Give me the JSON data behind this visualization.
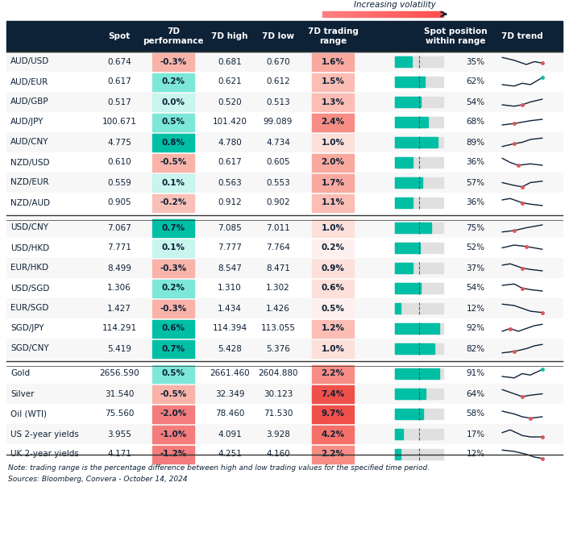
{
  "header_bg": "#0d2137",
  "header_fg": "#ffffff",
  "bg_color": "#ffffff",
  "col_labels": [
    "",
    "Spot",
    "7D\nperformance",
    "7D high",
    "7D low",
    "7D trading\nrange",
    "Spot position\nwithin range",
    "7D trend"
  ],
  "note": "Note: trading range is the percentage difference between high and low trading values for the specified time period.",
  "source": "Sources: Bloomberg, Convera - October 14, 2024",
  "volatility_label": "Increasing volatility",
  "sections": [
    {
      "rows": [
        [
          "AUD/USD",
          "0.674",
          "-0.3%",
          "0.681",
          "0.670",
          "1.6%",
          35,
          -0.3
        ],
        [
          "AUD/EUR",
          "0.617",
          "0.2%",
          "0.621",
          "0.612",
          "1.5%",
          62,
          0.2
        ],
        [
          "AUD/GBP",
          "0.517",
          "0.0%",
          "0.520",
          "0.513",
          "1.3%",
          54,
          0.0
        ],
        [
          "AUD/JPY",
          "100.671",
          "0.5%",
          "101.420",
          "99.089",
          "2.4%",
          68,
          0.5
        ],
        [
          "AUD/CNY",
          "4.775",
          "0.8%",
          "4.780",
          "4.734",
          "1.0%",
          89,
          0.8
        ],
        [
          "NZD/USD",
          "0.610",
          "-0.5%",
          "0.617",
          "0.605",
          "2.0%",
          36,
          -0.5
        ],
        [
          "NZD/EUR",
          "0.559",
          "0.1%",
          "0.563",
          "0.553",
          "1.7%",
          57,
          0.1
        ],
        [
          "NZD/AUD",
          "0.905",
          "-0.2%",
          "0.912",
          "0.902",
          "1.1%",
          36,
          -0.2
        ]
      ]
    },
    {
      "rows": [
        [
          "USD/CNY",
          "7.067",
          "0.7%",
          "7.085",
          "7.011",
          "1.0%",
          75,
          0.7
        ],
        [
          "USD/HKD",
          "7.771",
          "0.1%",
          "7.777",
          "7.764",
          "0.2%",
          52,
          0.1
        ],
        [
          "EUR/HKD",
          "8.499",
          "-0.3%",
          "8.547",
          "8.471",
          "0.9%",
          37,
          -0.3
        ],
        [
          "USD/SGD",
          "1.306",
          "0.2%",
          "1.310",
          "1.302",
          "0.6%",
          54,
          0.2
        ],
        [
          "EUR/SGD",
          "1.427",
          "-0.3%",
          "1.434",
          "1.426",
          "0.5%",
          12,
          -0.3
        ],
        [
          "SGD/JPY",
          "114.291",
          "0.6%",
          "114.394",
          "113.055",
          "1.2%",
          92,
          0.6
        ],
        [
          "SGD/CNY",
          "5.419",
          "0.7%",
          "5.428",
          "5.376",
          "1.0%",
          82,
          0.7
        ]
      ]
    },
    {
      "rows": [
        [
          "Gold",
          "2656.590",
          "0.5%",
          "2661.460",
          "2604.880",
          "2.2%",
          91,
          0.5
        ],
        [
          "Silver",
          "31.540",
          "-0.5%",
          "32.349",
          "30.123",
          "7.4%",
          64,
          -0.5
        ],
        [
          "Oil (WTI)",
          "75.560",
          "-2.0%",
          "78.460",
          "71.530",
          "9.7%",
          58,
          -2.0
        ],
        [
          "US 2-year yields",
          "3.955",
          "-1.0%",
          "4.091",
          "3.928",
          "4.2%",
          17,
          -1.0
        ],
        [
          "UK 2-year yields",
          "4.171",
          "-1.2%",
          "4.251",
          "4.160",
          "2.2%",
          12,
          -1.2
        ]
      ]
    }
  ],
  "trend_shapes": [
    [
      [
        [
          0,
          3
        ],
        [
          1,
          1
        ],
        [
          2,
          2
        ],
        [
          3,
          4
        ]
      ],
      "down_up_trend"
    ],
    [
      [
        [
          0,
          2
        ],
        [
          1,
          1
        ],
        [
          2,
          3
        ],
        [
          3,
          4
        ]
      ],
      "v_up"
    ],
    [
      [
        [
          0,
          3
        ],
        [
          1,
          1
        ],
        [
          2,
          2
        ],
        [
          3,
          4
        ]
      ],
      "v_up2"
    ],
    [
      [
        [
          0,
          1
        ],
        [
          1,
          2
        ],
        [
          2,
          3
        ],
        [
          3,
          4
        ]
      ],
      "up_trend"
    ],
    [
      [
        [
          0,
          1
        ],
        [
          1,
          3
        ],
        [
          2,
          2
        ],
        [
          3,
          4
        ]
      ],
      "up_bump"
    ],
    [
      [
        [
          0,
          4
        ],
        [
          1,
          2
        ],
        [
          2,
          3
        ],
        [
          3,
          2
        ]
      ],
      "down_recover"
    ],
    [
      [
        [
          0,
          3
        ],
        [
          1,
          2
        ],
        [
          2,
          3
        ],
        [
          3,
          2
        ]
      ],
      "flat_down"
    ],
    [
      [
        [
          0,
          4
        ],
        [
          1,
          3
        ],
        [
          2,
          2
        ],
        [
          3,
          2
        ]
      ],
      "step_down"
    ]
  ]
}
